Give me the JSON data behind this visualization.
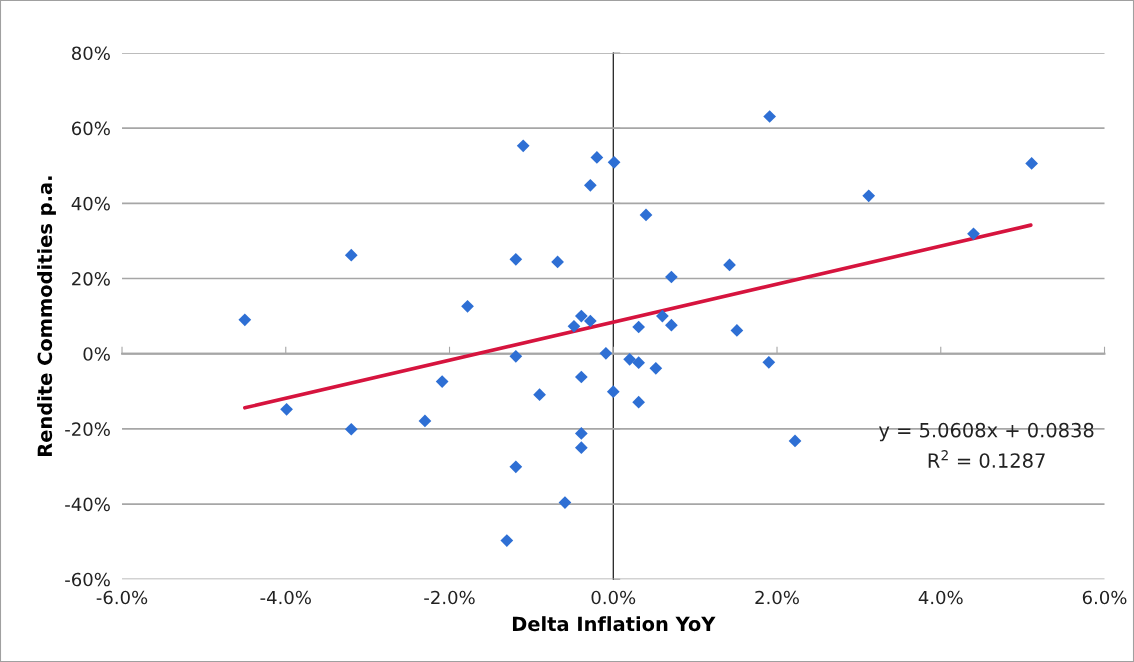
{
  "chart_data": {
    "type": "scatter",
    "xlabel": "Delta Inflation YoY",
    "ylabel": "Rendite Commodities p.a.",
    "grid": "y",
    "xlim": [
      -6,
      6
    ],
    "ylim": [
      -60,
      80
    ],
    "xticks": [
      {
        "value": -6,
        "label": "-6.0%"
      },
      {
        "value": -4,
        "label": "-4.0%"
      },
      {
        "value": -2,
        "label": "-2.0%"
      },
      {
        "value": 0,
        "label": "0.0%"
      },
      {
        "value": 2,
        "label": "2.0%"
      },
      {
        "value": 4,
        "label": "4.0%"
      },
      {
        "value": 6,
        "label": "6.0%"
      }
    ],
    "yticks": [
      {
        "value": -60,
        "label": "-60%"
      },
      {
        "value": -40,
        "label": "-40%"
      },
      {
        "value": -20,
        "label": "-20%"
      },
      {
        "value": 0,
        "label": "0%"
      },
      {
        "value": 20,
        "label": "20%"
      },
      {
        "value": 40,
        "label": "40%"
      },
      {
        "value": 60,
        "label": "60%"
      },
      {
        "value": 80,
        "label": "80%"
      }
    ],
    "series": [
      {
        "color": "#2e6fd4",
        "marker": "diamond",
        "x": [
          -4.5,
          -3.99,
          -3.2,
          -3.2,
          -2.3,
          -2.09,
          -1.78,
          -1.19,
          -1.19,
          -1.19,
          -1.1,
          -1.3,
          -0.9,
          -0.68,
          -0.59,
          -0.48,
          -0.39,
          -0.28,
          -0.39,
          -0.39,
          -0.39,
          -0.28,
          -0.2,
          -0.09,
          0.01,
          0.0,
          0.2,
          0.31,
          0.31,
          0.31,
          0.4,
          0.52,
          0.6,
          0.71,
          0.71,
          1.42,
          1.51,
          1.91,
          1.9,
          2.22,
          3.12,
          4.4,
          5.11
        ],
        "values": [
          9.0,
          -14.8,
          26.2,
          -20.1,
          -17.9,
          -7.4,
          12.6,
          25.1,
          -0.7,
          -30.1,
          55.3,
          -49.7,
          -10.9,
          24.4,
          -39.6,
          7.3,
          10.0,
          8.7,
          -6.2,
          -21.2,
          -25.0,
          44.8,
          52.2,
          0.1,
          50.9,
          -10.1,
          -1.5,
          7.1,
          -2.4,
          -12.9,
          36.9,
          -3.9,
          10.0,
          20.4,
          7.6,
          23.6,
          6.2,
          63.1,
          -2.3,
          -23.2,
          42.0,
          31.9,
          50.6
        ]
      },
      {
        "type": "line",
        "color": "#d6143e",
        "marker": "none",
        "x": [
          -4.5,
          5.1
        ],
        "values": [
          -14.4,
          34.2
        ]
      }
    ],
    "annotations": [
      {
        "text": "y = 5.0608x + 0.0838"
      },
      {
        "text": "R$^{2}$ = 0.1287"
      }
    ]
  }
}
